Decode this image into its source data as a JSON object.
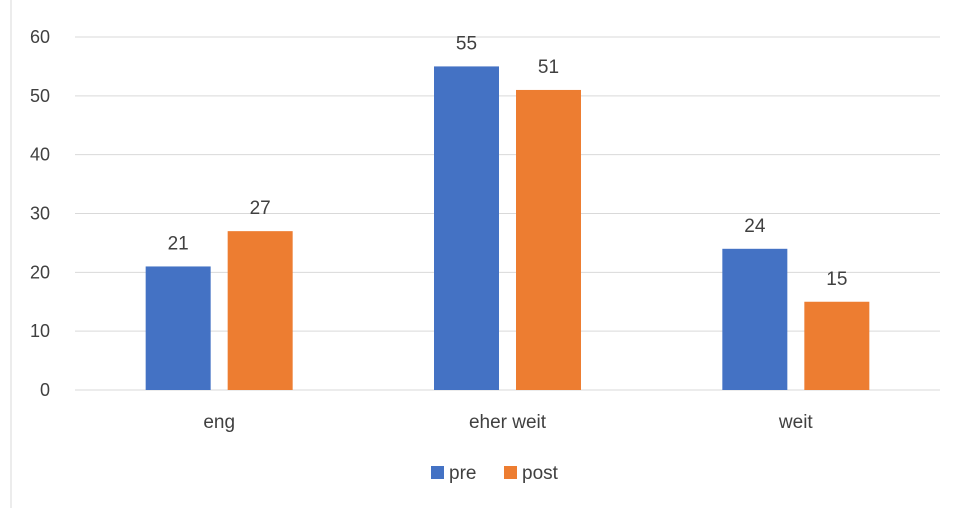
{
  "chart_data": {
    "type": "bar",
    "title": "",
    "xlabel": "",
    "ylabel": "",
    "categories": [
      "eng",
      "eher weit",
      "weit"
    ],
    "series": [
      {
        "name": "pre",
        "color": "#4472C4",
        "values": [
          21,
          55,
          24
        ]
      },
      {
        "name": "post",
        "color": "#ED7D31",
        "values": [
          27,
          51,
          15
        ]
      }
    ],
    "ylim": [
      0,
      60
    ],
    "yticks": [
      "0",
      "10",
      "20",
      "30",
      "40",
      "50",
      "60"
    ],
    "grid": true,
    "data_labels": true,
    "legend_position": "bottom"
  }
}
